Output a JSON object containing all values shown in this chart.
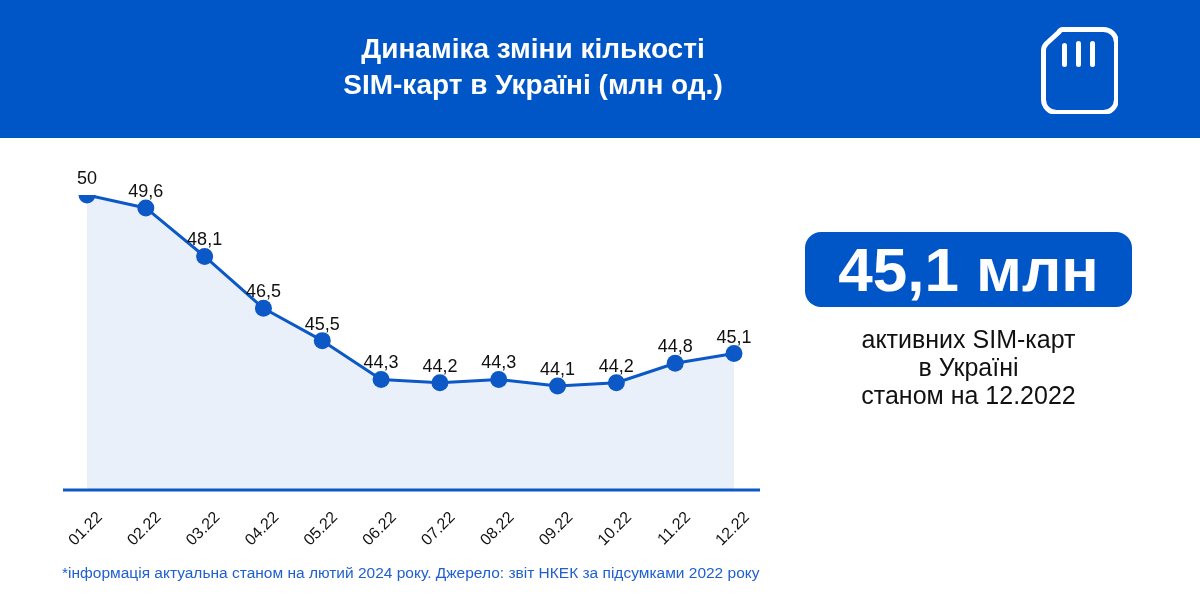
{
  "chart_data": [
    {
      "type": "area",
      "title": "Динаміка зміни кількості SIM-карт в Україні (млн од.)",
      "categories": [
        "01.22",
        "02.22",
        "03.22",
        "04.22",
        "05.22",
        "06.22",
        "07.22",
        "08.22",
        "09.22",
        "10.22",
        "11.22",
        "12.22"
      ],
      "series": [
        {
          "color": "#0b58c6",
          "values": [
            50,
            49.6,
            48.1,
            46.5,
            45.5,
            44.3,
            44.2,
            44.3,
            44.1,
            44.2,
            44.8,
            45.1
          ],
          "value_labels": [
            "50",
            "49,6",
            "48,1",
            "46,5",
            "45,5",
            "44,3",
            "44,2",
            "44,3",
            "44,1",
            "44,2",
            "44,8",
            "45,1"
          ]
        }
      ],
      "marker": "circle",
      "tick_labels": "x",
      "annotations": [
        "*інформація актуальна станом на лютий 2024 року. Джерело: звіт НКЕК за підсумками 2022 року"
      ]
    },
    {
      "type": "other",
      "title": "45,1 млн",
      "annotations": [
        "активних SIM-карт",
        "в Україні",
        "станом на 12.2022"
      ]
    }
  ]
}
